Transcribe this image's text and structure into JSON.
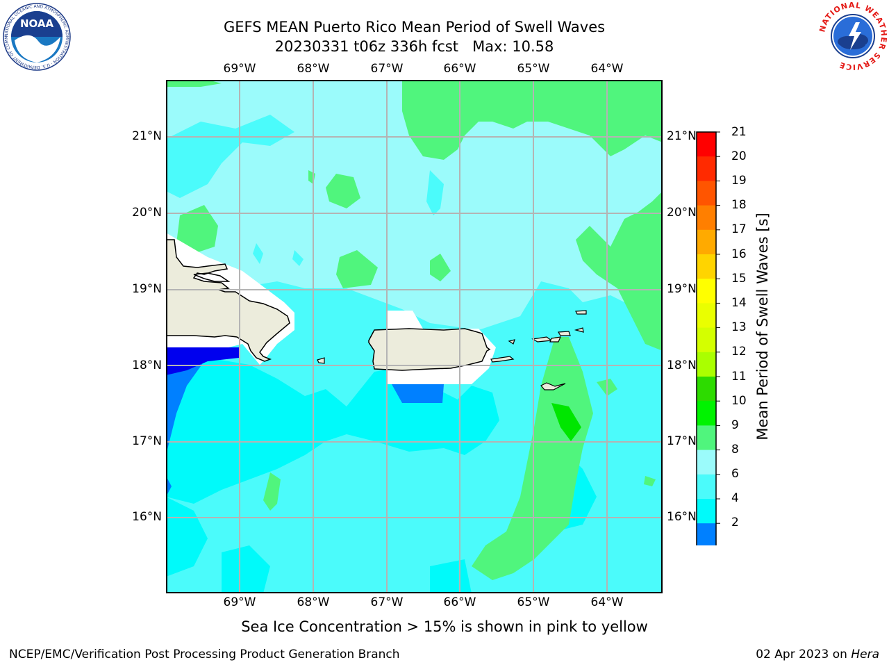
{
  "title": {
    "line1": "GEFS MEAN Puerto Rico Mean Period of Swell Waves",
    "line2": "20230331 t06z 336h fcst   Max: 10.58"
  },
  "map": {
    "lon_labels": [
      "69°W",
      "68°W",
      "67°W",
      "66°W",
      "65°W",
      "64°W"
    ],
    "lat_labels": [
      "21°N",
      "20°N",
      "19°N",
      "18°N",
      "17°N",
      "16°N"
    ],
    "lon_range": [
      -70,
      -63.25
    ],
    "lat_range": [
      15,
      21.75
    ],
    "colors": {
      "ocean_base": "#9bfbfb",
      "band_4_6": "#00fafa",
      "band_6_8": "#4bfbfb",
      "band_9_10": "#50f57d",
      "band_10_11": "#00e600",
      "band_2_4": "#0080ff",
      "below_2": "#0000ee",
      "land": "#ececdc",
      "gridline": "#b4b4b4",
      "coastline": "#000000"
    }
  },
  "colorbar": {
    "ticks": [
      "21",
      "20",
      "19",
      "18",
      "17",
      "16",
      "15",
      "14",
      "13",
      "12",
      "11",
      "10",
      "9",
      "8",
      "6",
      "4",
      "2"
    ],
    "colors": [
      "#ff0000",
      "#ff2a00",
      "#ff5500",
      "#ff7f00",
      "#ffaa00",
      "#ffd400",
      "#ffff00",
      "#eaff00",
      "#d4ff00",
      "#aaff00",
      "#2ddb00",
      "#00f300",
      "#50f57d",
      "#9bfbfb",
      "#4bfbfb",
      "#00fafa",
      "#0080ff"
    ],
    "underflow_color": "#0000ee",
    "label": "Mean Period of Swell Waves [s]"
  },
  "notes": {
    "ice": "Sea Ice Concentration > 15% is shown in pink to yellow"
  },
  "footer": {
    "left": "NCEP/EMC/Verification Post Processing Product Generation Branch",
    "date": "02 Apr 2023 on ",
    "host": "Hera"
  },
  "logos": {
    "noaa": {
      "text": "NOAA",
      "ring_text": "NATIONAL OCEANIC AND ATMOSPHERIC ADMINISTRATION · U.S. DEPARTMENT OF COMMERCE ·"
    },
    "nws": {
      "ring_text": "NATIONAL WEATHER SERVICE"
    }
  }
}
